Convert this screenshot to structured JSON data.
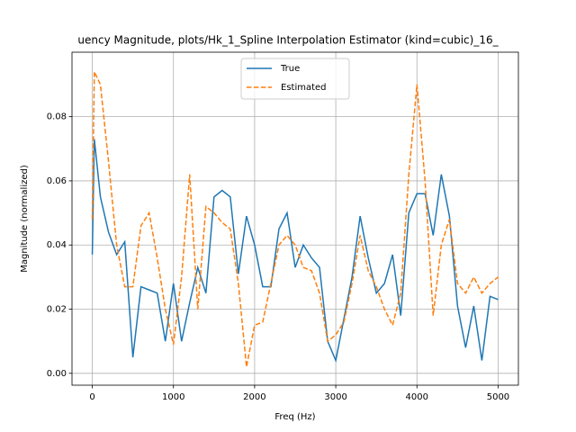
{
  "chart_data": {
    "type": "line",
    "title": "uency Magnitude, plots/Hk_1_Spline Interpolation Estimator (kind=cubic)_16_",
    "x_label": "Freq (Hz)",
    "y_label": "Magnitude (normalized)",
    "x": [
      0,
      25,
      100,
      200,
      300,
      400,
      500,
      600,
      700,
      800,
      900,
      1000,
      1100,
      1200,
      1300,
      1400,
      1500,
      1600,
      1700,
      1800,
      1900,
      2000,
      2100,
      2200,
      2300,
      2400,
      2500,
      2600,
      2700,
      2800,
      2900,
      3000,
      3100,
      3200,
      3300,
      3400,
      3500,
      3600,
      3700,
      3800,
      3900,
      4000,
      4100,
      4200,
      4300,
      4400,
      4500,
      4600,
      4700,
      4800,
      4900,
      5000
    ],
    "series": [
      {
        "name": "True",
        "color": "#1f77b4",
        "dash": "solid",
        "values": [
          0.037,
          0.073,
          0.055,
          0.044,
          0.037,
          0.041,
          0.005,
          0.027,
          0.026,
          0.025,
          0.01,
          0.028,
          0.01,
          0.022,
          0.033,
          0.025,
          0.055,
          0.057,
          0.055,
          0.031,
          0.049,
          0.04,
          0.027,
          0.027,
          0.045,
          0.05,
          0.033,
          0.04,
          0.036,
          0.033,
          0.01,
          0.004,
          0.017,
          0.03,
          0.049,
          0.036,
          0.025,
          0.028,
          0.037,
          0.018,
          0.05,
          0.056,
          0.056,
          0.043,
          0.062,
          0.049,
          0.021,
          0.008,
          0.021,
          0.004,
          0.024,
          0.023
        ]
      },
      {
        "name": "Estimated",
        "color": "#ff7f0e",
        "dash": "dashed",
        "values": [
          0.048,
          0.094,
          0.09,
          0.066,
          0.04,
          0.027,
          0.027,
          0.046,
          0.05,
          0.036,
          0.02,
          0.009,
          0.03,
          0.062,
          0.02,
          0.052,
          0.05,
          0.047,
          0.045,
          0.028,
          0.002,
          0.015,
          0.016,
          0.028,
          0.04,
          0.043,
          0.04,
          0.033,
          0.032,
          0.025,
          0.01,
          0.012,
          0.016,
          0.028,
          0.043,
          0.032,
          0.027,
          0.02,
          0.015,
          0.025,
          0.062,
          0.09,
          0.06,
          0.018,
          0.04,
          0.048,
          0.028,
          0.025,
          0.03,
          0.025,
          0.028,
          0.03
        ]
      }
    ],
    "xlim": [
      -250,
      5250
    ],
    "ylim": [
      -0.0037,
      0.1001
    ],
    "xticks": [
      0,
      1000,
      2000,
      3000,
      4000,
      5000
    ],
    "yticks": [
      {
        "value": 0,
        "label": "0.00"
      },
      {
        "value": 0.02,
        "label": "0.02"
      },
      {
        "value": 0.04,
        "label": "0.04"
      },
      {
        "value": 0.06,
        "label": "0.06"
      },
      {
        "value": 0.08,
        "label": "0.08"
      }
    ],
    "grid": true,
    "legend": "upper center"
  }
}
